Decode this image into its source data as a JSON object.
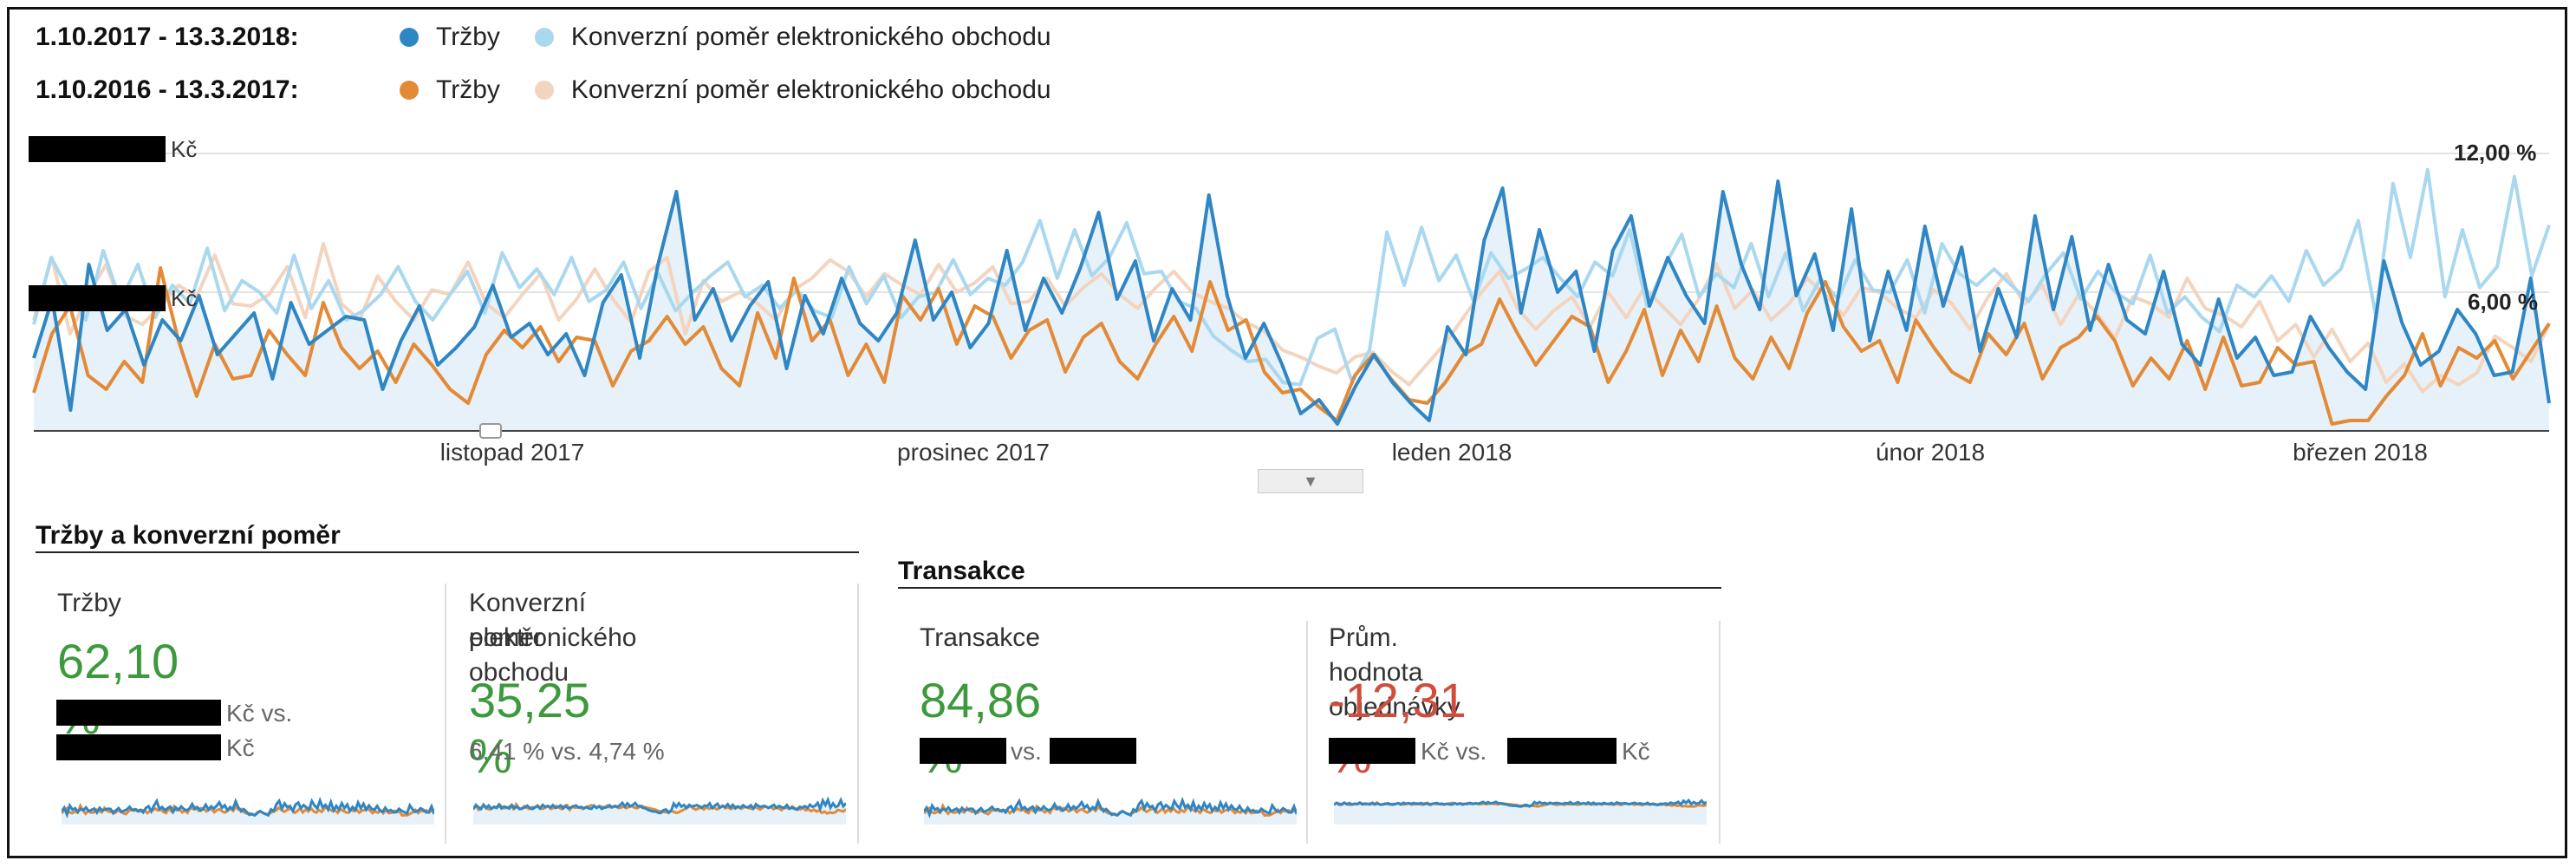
{
  "legend": {
    "current_range": "1.10.2017 - 13.3.2018:",
    "previous_range": "1.10.2016 - 13.3.2017:",
    "series_revenue": "Tržby",
    "series_conversion": "Konverzní poměr elektronického obchodu"
  },
  "colors": {
    "current_revenue": "#2f86c4",
    "current_conversion": "#a9d8ef",
    "previous_revenue": "#e38a36",
    "previous_conversion": "#f3d4bf",
    "positive": "#3c9a3c",
    "negative": "#d04d3e"
  },
  "chart": {
    "left_unit_top": "Kč",
    "left_unit_mid": "Kč",
    "right_tick_top": "12,00 %",
    "right_tick_mid": "6,00 %",
    "months": [
      "listopad 2017",
      "prosinec 2017",
      "leden 2018",
      "únor 2018",
      "březen 2018"
    ],
    "annotation_icon": "annotation-icon",
    "collapse_icon": "chevron-down-icon"
  },
  "chart_data": {
    "type": "line",
    "x_labels": [
      "listopad 2017",
      "prosinec 2017",
      "leden 2018",
      "únor 2018",
      "březen 2018"
    ],
    "right_axis_ticks": [
      "6,00 %",
      "12,00 %"
    ],
    "series": [
      {
        "name": "Tržby",
        "period": "1.10.2017 - 13.3.2018",
        "axis": "left",
        "values": [
          2.1,
          3.8,
          0.6,
          4.8,
          2.9,
          3.5,
          1.9,
          3.2,
          2.6,
          3.9,
          2.2,
          2.8,
          3.4,
          1.5,
          3.7,
          2.5,
          2.9,
          3.3,
          3.2,
          1.2,
          2.6,
          3.6,
          1.9,
          2.4,
          3.0,
          4.2,
          2.7,
          3.1,
          2.2,
          2.8,
          1.6,
          3.7,
          4.5,
          2.1,
          4.8,
          6.9,
          3.2,
          4.1,
          2.6,
          3.6,
          4.3,
          1.8,
          3.9,
          2.8,
          4.4,
          3.1,
          2.6,
          3.4,
          5.5,
          3.2,
          4.0,
          2.4,
          3.1,
          5.2,
          2.9,
          4.4,
          3.4,
          4.7,
          6.3,
          3.8,
          4.9,
          2.6,
          4.1,
          3.2,
          6.8,
          3.9,
          2.1,
          3.1,
          1.9,
          0.5,
          0.9,
          0.2,
          1.3,
          2.2,
          1.4,
          0.8,
          0.3,
          3.0,
          2.2,
          5.5,
          7.0,
          3.4,
          5.8,
          4.0,
          4.6,
          2.3,
          5.2,
          6.2,
          3.6,
          5.0,
          3.9,
          3.1,
          6.9,
          4.8,
          3.5,
          7.2,
          3.9,
          5.1,
          2.9,
          6.4,
          2.6,
          4.6,
          2.9,
          5.9,
          3.6,
          5.3,
          2.3,
          4.1,
          2.7,
          6.2,
          3.5,
          5.6,
          2.9,
          4.8,
          3.2,
          2.8,
          4.6,
          2.5,
          1.9,
          3.8,
          2.1,
          2.7,
          1.6,
          1.7,
          3.3,
          2.4,
          1.7,
          1.2,
          4.9,
          3.1,
          1.9,
          2.3,
          3.5,
          2.8,
          1.6,
          1.7,
          4.4,
          0.8
        ]
      },
      {
        "name": "Konverzní poměr elektronického obchodu",
        "period": "1.10.2017 - 13.3.2018",
        "axis": "right",
        "values": [
          4.6,
          7.5,
          6.1,
          4.8,
          7.8,
          5.6,
          7.2,
          4.9,
          6.3,
          5.5,
          7.9,
          5.2,
          6.5,
          6.0,
          5.1,
          7.6,
          5.3,
          6.5,
          4.8,
          5.2,
          5.9,
          7.1,
          5.6,
          4.8,
          5.9,
          6.9,
          5.1,
          7.7,
          6.2,
          7.0,
          5.9,
          7.5,
          5.6,
          6.1,
          7.3,
          5.3,
          6.8,
          5.2,
          6.0,
          6.7,
          7.3,
          5.8,
          6.3,
          5.3,
          6.1,
          5.2,
          4.9,
          7.1,
          5.5,
          6.7,
          4.9,
          5.8,
          6.0,
          7.4,
          5.9,
          6.6,
          6.3,
          7.3,
          9.1,
          6.6,
          8.7,
          6.7,
          7.5,
          9.0,
          6.8,
          6.9,
          5.6,
          5.3,
          4.1,
          3.5,
          3.0,
          3.1,
          2.1,
          2.0,
          4.0,
          4.4,
          2.1,
          3.5,
          8.6,
          6.3,
          8.8,
          6.5,
          7.6,
          5.6,
          7.7,
          6.6,
          7.0,
          7.5,
          6.6,
          5.8,
          7.3,
          6.7,
          8.7,
          5.4,
          7.1,
          8.5,
          5.8,
          6.8,
          6.2,
          8.1,
          5.8,
          7.7,
          5.2,
          6.6,
          5.7,
          7.4,
          6.1,
          6.0,
          7.4,
          5.1,
          8.1,
          6.8,
          6.3,
          7.0,
          6.3,
          5.6,
          6.8,
          7.7,
          5.7,
          6.9,
          6.0,
          5.5,
          7.6,
          5.1,
          5.8,
          4.9,
          4.3,
          6.3,
          5.8,
          6.7,
          5.6,
          7.8,
          6.3,
          7.0,
          9.1,
          5.0,
          10.7,
          7.5,
          11.3,
          5.8,
          8.7,
          6.2,
          7.1,
          11.0,
          6.7,
          8.9
        ]
      },
      {
        "name": "Tržby",
        "period": "1.10.2016 - 13.3.2017",
        "axis": "left",
        "values": [
          1.1,
          2.8,
          3.6,
          1.6,
          1.2,
          2.0,
          1.4,
          4.7,
          2.6,
          1.0,
          2.5,
          1.5,
          1.6,
          2.9,
          2.2,
          1.6,
          3.7,
          2.4,
          1.8,
          2.3,
          1.4,
          2.5,
          1.9,
          1.2,
          0.8,
          2.2,
          2.9,
          2.4,
          3.0,
          2.0,
          2.7,
          2.6,
          1.3,
          2.3,
          2.6,
          3.3,
          2.5,
          3.0,
          1.8,
          1.3,
          3.4,
          2.1,
          4.4,
          2.6,
          3.2,
          1.6,
          2.5,
          1.4,
          3.9,
          3.2,
          4.1,
          2.5,
          3.6,
          3.3,
          2.1,
          2.9,
          3.2,
          1.7,
          2.7,
          3.1,
          2.0,
          1.5,
          2.5,
          3.3,
          2.3,
          4.3,
          2.9,
          3.2,
          1.7,
          1.1,
          1.2,
          0.7,
          0.3,
          1.6,
          2.2,
          1.5,
          0.9,
          0.8,
          1.4,
          2.2,
          2.5,
          3.8,
          2.8,
          1.9,
          2.6,
          3.3,
          3.0,
          1.4,
          2.3,
          3.5,
          1.6,
          2.9,
          2.0,
          3.6,
          2.1,
          1.5,
          2.7,
          1.8,
          3.4,
          4.3,
          3.0,
          2.3,
          2.6,
          1.4,
          3.2,
          2.4,
          1.7,
          1.4,
          2.8,
          2.2,
          3.1,
          1.5,
          2.4,
          2.7,
          3.3,
          2.6,
          1.3,
          2.1,
          1.5,
          2.6,
          1.2,
          2.7,
          1.3,
          1.4,
          2.4,
          1.9,
          2.0,
          0.2,
          0.3,
          0.3,
          1.0,
          1.6,
          2.8,
          1.3,
          2.4,
          2.1,
          2.6,
          1.5,
          2.3,
          3.1
        ]
      },
      {
        "name": "Konverzní poměr elektronického obchodu",
        "period": "1.10.2016 - 13.3.2017",
        "axis": "right",
        "values": [
          4.8,
          7.5,
          4.2,
          5.9,
          7.2,
          5.0,
          4.6,
          5.4,
          6.3,
          5.8,
          7.6,
          5.5,
          5.4,
          5.9,
          7.1,
          4.9,
          8.1,
          5.5,
          4.8,
          6.7,
          5.6,
          4.8,
          6.1,
          5.9,
          7.3,
          5.5,
          4.9,
          5.9,
          6.8,
          4.8,
          5.7,
          7.0,
          5.7,
          4.7,
          6.9,
          7.5,
          4.2,
          6.5,
          5.6,
          6.0,
          5.5,
          4.8,
          6.1,
          6.6,
          7.4,
          6.9,
          5.8,
          6.8,
          6.3,
          5.9,
          7.2,
          6.0,
          6.4,
          7.1,
          5.5,
          5.6,
          6.6,
          5.4,
          6.2,
          6.8,
          5.9,
          5.3,
          6.2,
          6.9,
          6.0,
          5.6,
          5.3,
          4.7,
          4.3,
          3.5,
          3.2,
          2.8,
          2.5,
          3.2,
          3.4,
          2.6,
          2.0,
          2.9,
          3.8,
          4.9,
          6.0,
          6.9,
          5.3,
          4.4,
          5.2,
          5.8,
          4.5,
          6.0,
          4.9,
          6.2,
          5.4,
          4.6,
          5.7,
          7.2,
          5.3,
          6.1,
          4.8,
          5.5,
          6.6,
          5.9,
          5.0,
          6.2,
          6.0,
          5.3,
          4.9,
          6.1,
          5.5,
          4.4,
          5.8,
          6.8,
          5.5,
          6.3,
          4.6,
          5.9,
          5.1,
          4.0,
          5.8,
          5.5,
          4.9,
          6.6,
          5.3,
          5.0,
          4.5,
          5.6,
          3.9,
          4.6,
          3.2,
          4.4,
          3.0,
          3.8,
          2.1,
          2.9,
          1.7,
          2.4,
          2.0,
          2.5,
          4.1,
          3.6,
          3.0,
          4.6
        ]
      }
    ]
  },
  "sections": {
    "revenue_title": "Tržby a konverzní poměr",
    "transactions_title": "Transakce"
  },
  "cards": {
    "revenue": {
      "label": "Tržby",
      "value": "62,10 %",
      "line1_suffix": "Kč vs.",
      "line2_suffix": "Kč"
    },
    "conversion": {
      "label_line1": "Konverzní poměr",
      "label_line2": "elektronického obchodu",
      "value": "35,25 %",
      "subtext": "6,41 % vs. 4,74 %"
    },
    "transactions": {
      "label": "Transakce",
      "value": "84,86 %",
      "vs_text": "vs."
    },
    "avg_order": {
      "label": "Prům. hodnota objednávky",
      "value": "-12,31 %",
      "suffix1": "Kč vs.",
      "suffix2": "Kč"
    }
  }
}
